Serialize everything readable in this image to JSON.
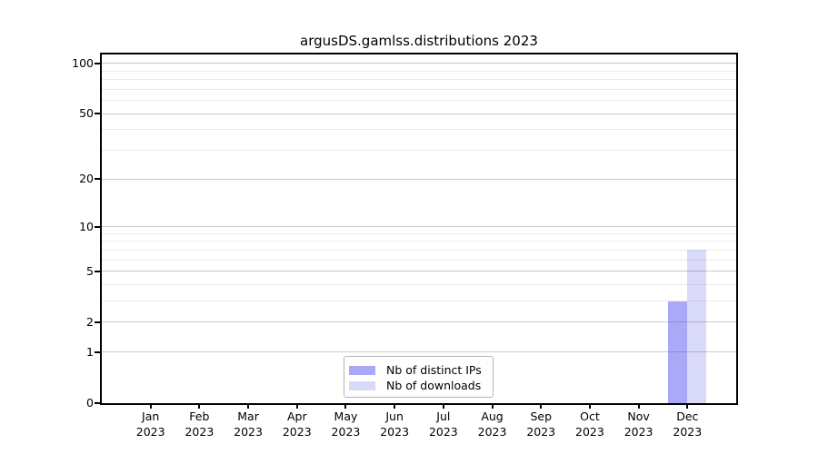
{
  "chart_data": {
    "type": "bar",
    "title": "argusDS.gamlss.distributions 2023",
    "categories": [
      "Jan",
      "Feb",
      "Mar",
      "Apr",
      "May",
      "Jun",
      "Jul",
      "Aug",
      "Sep",
      "Oct",
      "Nov",
      "Dec"
    ],
    "year_label": "2023",
    "series": [
      {
        "name": "Nb of distinct IPs",
        "color": "#a9a9f7",
        "values": [
          0,
          0,
          0,
          0,
          0,
          0,
          0,
          0,
          0,
          0,
          0,
          3
        ]
      },
      {
        "name": "Nb of downloads",
        "color": "#d9d9f9",
        "values": [
          0,
          0,
          0,
          0,
          0,
          0,
          0,
          0,
          0,
          0,
          0,
          7
        ]
      }
    ],
    "yscale": "log1p",
    "ylim": [
      0,
      113
    ],
    "yticks": [
      0,
      1,
      2,
      5,
      10,
      20,
      50,
      100
    ],
    "minor_gridlines": [
      3,
      4,
      6,
      7,
      8,
      9,
      30,
      40,
      60,
      70,
      80,
      90
    ],
    "grid": "horizontal",
    "legend_position": "lower center",
    "axis_color": "#000000",
    "background_color": "#ffffff"
  }
}
